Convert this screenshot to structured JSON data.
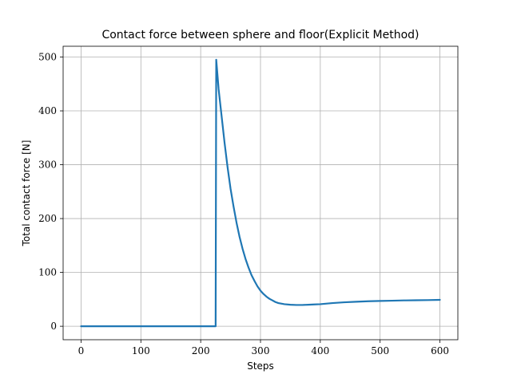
{
  "chart_data": {
    "type": "line",
    "title": "Contact force between sphere and floor(Explicit Method)",
    "xlabel": "Steps",
    "ylabel": "Total contact force [N]",
    "xlim": [
      -30,
      630
    ],
    "ylim": [
      -25,
      520
    ],
    "xticks": [
      0,
      100,
      200,
      300,
      400,
      500,
      600
    ],
    "yticks": [
      0,
      100,
      200,
      300,
      400,
      500
    ],
    "grid": true,
    "colors": {
      "series": "#1f77b4"
    },
    "series": [
      {
        "x": [
          0,
          100,
          200,
          224,
          225,
          226,
          230,
          235,
          240,
          245,
          250,
          255,
          260,
          265,
          270,
          275,
          280,
          285,
          290,
          295,
          300,
          305,
          310,
          315,
          320,
          325,
          330,
          340,
          350,
          360,
          370,
          380,
          390,
          400,
          420,
          440,
          460,
          480,
          500,
          520,
          540,
          560,
          580,
          600
        ],
        "y": [
          0,
          0,
          0,
          0,
          0,
          495,
          440,
          390,
          340,
          295,
          255,
          222,
          192,
          166,
          144,
          125,
          109,
          95,
          84,
          74,
          66,
          60,
          55,
          51,
          48,
          45,
          43,
          41,
          40,
          39.5,
          39.5,
          40,
          40.5,
          41,
          43,
          44.5,
          45.5,
          46.5,
          47,
          47.5,
          48,
          48.3,
          48.6,
          49
        ]
      }
    ]
  }
}
